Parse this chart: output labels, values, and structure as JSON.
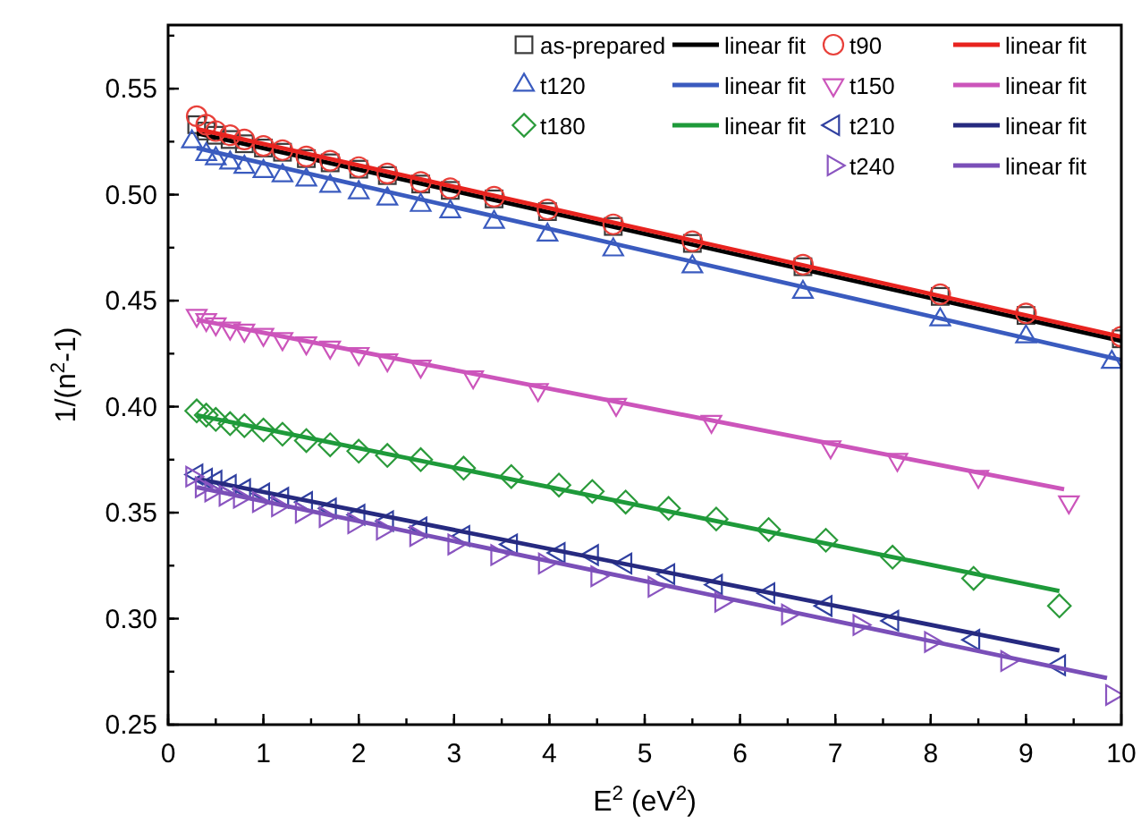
{
  "chart_data": {
    "type": "scatter",
    "xlabel": "E$^{2}$ (eV$^{2}$)",
    "ylabel": "1/(n$^{2}$-1)",
    "xlim": [
      0,
      10
    ],
    "ylim": [
      0.25,
      0.58
    ],
    "xticks": [
      0,
      1,
      2,
      3,
      4,
      5,
      6,
      7,
      8,
      9,
      10
    ],
    "yticks": [
      0.25,
      {
        "value": 0.3,
        "label": "0.30"
      },
      0.35,
      {
        "value": 0.4,
        "label": "0.40"
      },
      0.45,
      {
        "value": 0.5,
        "label": "0.50"
      },
      0.55
    ],
    "legend": "top right",
    "grid": false,
    "series": [
      {
        "name": "as-prepared",
        "marker": "square",
        "color": "#3a3a3a",
        "x": [
          0.3,
          0.4,
          0.5,
          0.65,
          0.8,
          1.0,
          1.2,
          1.45,
          1.7,
          2.0,
          2.3,
          2.65,
          2.96,
          3.42,
          3.98,
          4.67,
          5.5,
          6.66,
          8.1,
          9.0,
          10.0
        ],
        "values": [
          0.533,
          0.53,
          0.528,
          0.526,
          0.524,
          0.522,
          0.52,
          0.517,
          0.515,
          0.512,
          0.509,
          0.505,
          0.502,
          0.498,
          0.492,
          0.485,
          0.477,
          0.466,
          0.452,
          0.443,
          0.432
        ]
      },
      {
        "name": "linear fit",
        "type": "line",
        "color": "#000000",
        "x": [
          0.3,
          10
        ],
        "values": [
          0.529,
          0.431
        ]
      },
      {
        "name": "t90",
        "marker": "circle",
        "color": "#e8403a",
        "x": [
          0.3,
          0.4,
          0.5,
          0.65,
          0.8,
          1.0,
          1.2,
          1.45,
          1.7,
          2.0,
          2.3,
          2.65,
          2.96,
          3.42,
          3.98,
          4.67,
          5.5,
          6.66,
          8.1,
          9.0,
          10.0
        ],
        "values": [
          0.537,
          0.533,
          0.53,
          0.528,
          0.526,
          0.523,
          0.521,
          0.518,
          0.516,
          0.513,
          0.51,
          0.506,
          0.503,
          0.499,
          0.493,
          0.486,
          0.478,
          0.467,
          0.453,
          0.444,
          0.433
        ]
      },
      {
        "name": "linear fit",
        "type": "line",
        "color": "#e8231f",
        "x": [
          0.3,
          10
        ],
        "values": [
          0.531,
          0.433
        ]
      },
      {
        "name": "t120",
        "marker": "triangle",
        "color": "#3a5bbf",
        "x": [
          0.25,
          0.4,
          0.5,
          0.65,
          0.8,
          1.0,
          1.2,
          1.45,
          1.7,
          2.0,
          2.3,
          2.65,
          2.96,
          3.42,
          3.98,
          4.67,
          5.5,
          6.66,
          8.1,
          9.0,
          9.9
        ],
        "values": [
          0.525,
          0.519,
          0.517,
          0.515,
          0.513,
          0.511,
          0.509,
          0.507,
          0.504,
          0.501,
          0.498,
          0.495,
          0.492,
          0.487,
          0.481,
          0.474,
          0.466,
          0.454,
          0.441,
          0.433,
          0.421
        ]
      },
      {
        "name": "linear fit",
        "type": "line",
        "color": "#3a5bbf",
        "x": [
          0.3,
          10
        ],
        "values": [
          0.522,
          0.422
        ]
      },
      {
        "name": "t150",
        "marker": "triangle-down",
        "color": "#cc55bb",
        "x": [
          0.3,
          0.4,
          0.5,
          0.65,
          0.8,
          1.0,
          1.2,
          1.45,
          1.7,
          2.0,
          2.3,
          2.65,
          3.2,
          3.88,
          4.7,
          5.7,
          6.95,
          7.65,
          8.5,
          9.45
        ],
        "values": [
          0.443,
          0.441,
          0.439,
          0.437,
          0.436,
          0.434,
          0.432,
          0.43,
          0.428,
          0.425,
          0.422,
          0.419,
          0.414,
          0.408,
          0.401,
          0.393,
          0.381,
          0.375,
          0.367,
          0.355
        ]
      },
      {
        "name": "linear fit",
        "type": "line",
        "color": "#cc55bb",
        "x": [
          0.3,
          9.4
        ],
        "values": [
          0.441,
          0.361
        ]
      },
      {
        "name": "t180",
        "marker": "diamond",
        "color": "#2a9a3a",
        "x": [
          0.3,
          0.4,
          0.5,
          0.65,
          0.8,
          1.0,
          1.2,
          1.45,
          1.7,
          2.0,
          2.3,
          2.65,
          3.1,
          3.6,
          4.1,
          4.45,
          4.8,
          5.25,
          5.75,
          6.3,
          6.9,
          7.6,
          8.45,
          9.35
        ],
        "values": [
          0.398,
          0.396,
          0.394,
          0.392,
          0.391,
          0.389,
          0.387,
          0.384,
          0.382,
          0.379,
          0.377,
          0.375,
          0.371,
          0.367,
          0.363,
          0.36,
          0.355,
          0.352,
          0.347,
          0.342,
          0.337,
          0.329,
          0.319,
          0.306
        ]
      },
      {
        "name": "linear fit",
        "type": "line",
        "color": "#1e9a3a",
        "x": [
          0.3,
          9.35
        ],
        "values": [
          0.396,
          0.313
        ]
      },
      {
        "name": "t210",
        "marker": "triangle-left",
        "color": "#3040a0",
        "x": [
          0.3,
          0.4,
          0.5,
          0.65,
          0.8,
          1.0,
          1.2,
          1.45,
          1.7,
          2.0,
          2.3,
          2.65,
          3.1,
          3.6,
          4.1,
          4.45,
          4.8,
          5.25,
          5.75,
          6.3,
          6.9,
          7.6,
          8.45,
          9.35
        ],
        "values": [
          0.368,
          0.366,
          0.365,
          0.363,
          0.361,
          0.359,
          0.357,
          0.355,
          0.352,
          0.349,
          0.346,
          0.343,
          0.339,
          0.335,
          0.331,
          0.33,
          0.326,
          0.321,
          0.316,
          0.312,
          0.306,
          0.299,
          0.29,
          0.278
        ]
      },
      {
        "name": "linear fit",
        "type": "line",
        "color": "#262a80",
        "x": [
          0.3,
          9.35
        ],
        "values": [
          0.366,
          0.285
        ]
      },
      {
        "name": "t240",
        "marker": "triangle-right",
        "color": "#8a55c0",
        "x": [
          0.25,
          0.35,
          0.45,
          0.6,
          0.75,
          0.95,
          1.15,
          1.4,
          1.65,
          1.95,
          2.25,
          2.6,
          3.0,
          3.45,
          3.95,
          4.5,
          5.1,
          5.8,
          6.5,
          7.25,
          8.0,
          8.8,
          9.9
        ],
        "values": [
          0.367,
          0.362,
          0.36,
          0.358,
          0.357,
          0.355,
          0.353,
          0.35,
          0.348,
          0.345,
          0.342,
          0.339,
          0.335,
          0.33,
          0.326,
          0.32,
          0.315,
          0.308,
          0.302,
          0.297,
          0.289,
          0.28,
          0.264
        ]
      },
      {
        "name": "linear fit",
        "type": "line",
        "color": "#7a4fb8",
        "x": [
          0.3,
          9.85
        ],
        "values": [
          0.362,
          0.272
        ]
      }
    ]
  }
}
